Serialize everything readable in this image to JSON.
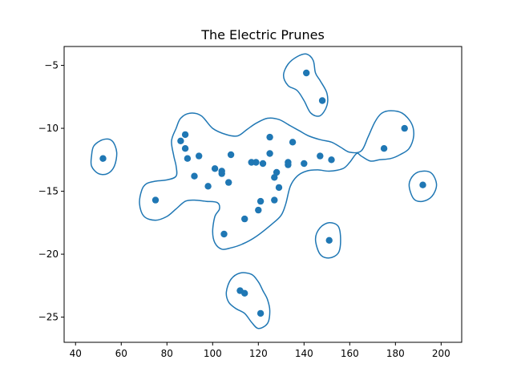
{
  "chart_data": {
    "type": "scatter",
    "title": "The Electric Prunes",
    "xlabel": "",
    "ylabel": "",
    "xlim": [
      35,
      209
    ],
    "ylim": [
      -27,
      -3.5
    ],
    "x_ticks": [
      40,
      60,
      80,
      100,
      120,
      140,
      160,
      180,
      200
    ],
    "y_ticks": [
      -25,
      -20,
      -15,
      -10,
      -5
    ],
    "x_tick_labels": [
      "40",
      "60",
      "80",
      "100",
      "120",
      "140",
      "160",
      "180",
      "200"
    ],
    "y_tick_labels": [
      "−25",
      "−20",
      "−15",
      "−10",
      "−5"
    ],
    "grid": false,
    "legend": "none",
    "color": "#1f77b4",
    "series": [
      {
        "points": [
          [
            52,
            -12.4
          ],
          [
            75,
            -15.7
          ],
          [
            86,
            -11.0
          ],
          [
            88,
            -10.5
          ],
          [
            88,
            -11.6
          ],
          [
            89,
            -12.4
          ],
          [
            92,
            -13.8
          ],
          [
            94,
            -12.2
          ],
          [
            98,
            -14.6
          ],
          [
            101,
            -13.2
          ],
          [
            104,
            -13.6
          ],
          [
            104,
            -13.4
          ],
          [
            105,
            -18.4
          ],
          [
            107,
            -14.3
          ],
          [
            108,
            -12.1
          ],
          [
            114,
            -17.2
          ],
          [
            117,
            -12.7
          ],
          [
            119,
            -12.7
          ],
          [
            120,
            -16.5
          ],
          [
            121,
            -15.8
          ],
          [
            122,
            -12.8
          ],
          [
            125,
            -10.7
          ],
          [
            125,
            -12.0
          ],
          [
            127,
            -13.9
          ],
          [
            127,
            -15.7
          ],
          [
            128,
            -13.5
          ],
          [
            129,
            -14.7
          ],
          [
            133,
            -12.7
          ],
          [
            133,
            -12.9
          ],
          [
            135,
            -11.1
          ],
          [
            140,
            -12.8
          ],
          [
            141,
            -5.6
          ],
          [
            147,
            -12.2
          ],
          [
            148,
            -7.8
          ],
          [
            151,
            -18.9
          ],
          [
            152,
            -12.5
          ],
          [
            175,
            -11.6
          ],
          [
            184,
            -10.0
          ],
          [
            192,
            -14.5
          ],
          [
            112,
            -22.9
          ],
          [
            114,
            -23.1
          ],
          [
            121,
            -24.7
          ]
        ]
      }
    ],
    "contours": [
      [
        [
          82,
          -11.0
        ],
        [
          84,
          -10.0
        ],
        [
          86,
          -9.2
        ],
        [
          90,
          -8.8
        ],
        [
          95,
          -9.0
        ],
        [
          100,
          -10.0
        ],
        [
          106,
          -10.5
        ],
        [
          111,
          -10.6
        ],
        [
          115,
          -10.1
        ],
        [
          119,
          -9.6
        ],
        [
          124,
          -9.2
        ],
        [
          129,
          -9.3
        ],
        [
          134,
          -9.8
        ],
        [
          138,
          -10.2
        ],
        [
          142,
          -10.6
        ],
        [
          147,
          -10.9
        ],
        [
          152,
          -11.1
        ],
        [
          156,
          -11.5
        ],
        [
          160,
          -11.9
        ],
        [
          165,
          -11.8
        ],
        [
          168,
          -10.7
        ],
        [
          171,
          -9.5
        ],
        [
          174,
          -8.8
        ],
        [
          178,
          -8.6
        ],
        [
          183,
          -8.8
        ],
        [
          187,
          -9.6
        ],
        [
          188,
          -10.6
        ],
        [
          186,
          -11.6
        ],
        [
          182,
          -12.1
        ],
        [
          178,
          -12.4
        ],
        [
          173,
          -12.5
        ],
        [
          169,
          -12.6
        ],
        [
          165,
          -12.2
        ],
        [
          163,
          -12.0
        ],
        [
          160,
          -12.7
        ],
        [
          157,
          -13.2
        ],
        [
          151,
          -13.4
        ],
        [
          146,
          -13.3
        ],
        [
          141,
          -13.4
        ],
        [
          137,
          -13.8
        ],
        [
          134,
          -14.6
        ],
        [
          132,
          -16.0
        ],
        [
          130,
          -16.9
        ],
        [
          126,
          -17.6
        ],
        [
          119,
          -18.6
        ],
        [
          113,
          -19.2
        ],
        [
          108,
          -19.5
        ],
        [
          104,
          -19.6
        ],
        [
          101,
          -19.1
        ],
        [
          100,
          -18.2
        ],
        [
          101,
          -17.0
        ],
        [
          103,
          -16.4
        ],
        [
          102,
          -15.9
        ],
        [
          97,
          -15.8
        ],
        [
          92,
          -15.7
        ],
        [
          88,
          -15.8
        ],
        [
          84,
          -16.4
        ],
        [
          80,
          -17.0
        ],
        [
          75,
          -17.3
        ],
        [
          70,
          -17.0
        ],
        [
          68,
          -16.0
        ],
        [
          69,
          -14.9
        ],
        [
          71,
          -14.4
        ],
        [
          75,
          -14.2
        ],
        [
          80,
          -14.1
        ],
        [
          84,
          -13.8
        ],
        [
          84,
          -13.0
        ],
        [
          83,
          -12.2
        ],
        [
          82,
          -11.0
        ]
      ],
      [
        [
          47,
          -12.2
        ],
        [
          48,
          -11.4
        ],
        [
          52,
          -10.9
        ],
        [
          56,
          -11.0
        ],
        [
          58,
          -11.9
        ],
        [
          57,
          -13.0
        ],
        [
          54,
          -13.6
        ],
        [
          50,
          -13.6
        ],
        [
          47,
          -13.0
        ],
        [
          47,
          -12.2
        ]
      ],
      [
        [
          131,
          -5.8
        ],
        [
          133,
          -4.9
        ],
        [
          137,
          -4.3
        ],
        [
          141,
          -4.1
        ],
        [
          144,
          -4.6
        ],
        [
          145,
          -5.6
        ],
        [
          147,
          -6.2
        ],
        [
          150,
          -7.2
        ],
        [
          150,
          -8.2
        ],
        [
          147,
          -9.0
        ],
        [
          143,
          -8.8
        ],
        [
          140,
          -7.8
        ],
        [
          137,
          -7.0
        ],
        [
          133,
          -6.6
        ],
        [
          131,
          -5.8
        ]
      ],
      [
        [
          186,
          -14.5
        ],
        [
          188,
          -13.7
        ],
        [
          192,
          -13.4
        ],
        [
          196,
          -13.6
        ],
        [
          198,
          -14.5
        ],
        [
          196,
          -15.4
        ],
        [
          192,
          -15.8
        ],
        [
          188,
          -15.6
        ],
        [
          186,
          -14.5
        ]
      ],
      [
        [
          145,
          -18.8
        ],
        [
          147,
          -17.9
        ],
        [
          151,
          -17.5
        ],
        [
          155,
          -17.8
        ],
        [
          156,
          -18.9
        ],
        [
          155,
          -19.9
        ],
        [
          151,
          -20.3
        ],
        [
          147,
          -20.0
        ],
        [
          145,
          -18.8
        ]
      ],
      [
        [
          106,
          -23.0
        ],
        [
          108,
          -22.0
        ],
        [
          112,
          -21.5
        ],
        [
          117,
          -21.6
        ],
        [
          120,
          -22.2
        ],
        [
          122,
          -22.9
        ],
        [
          124,
          -23.6
        ],
        [
          125,
          -24.5
        ],
        [
          124,
          -25.5
        ],
        [
          120,
          -25.9
        ],
        [
          117,
          -25.4
        ],
        [
          114,
          -24.7
        ],
        [
          110,
          -24.3
        ],
        [
          107,
          -23.8
        ],
        [
          106,
          -23.0
        ]
      ]
    ]
  }
}
